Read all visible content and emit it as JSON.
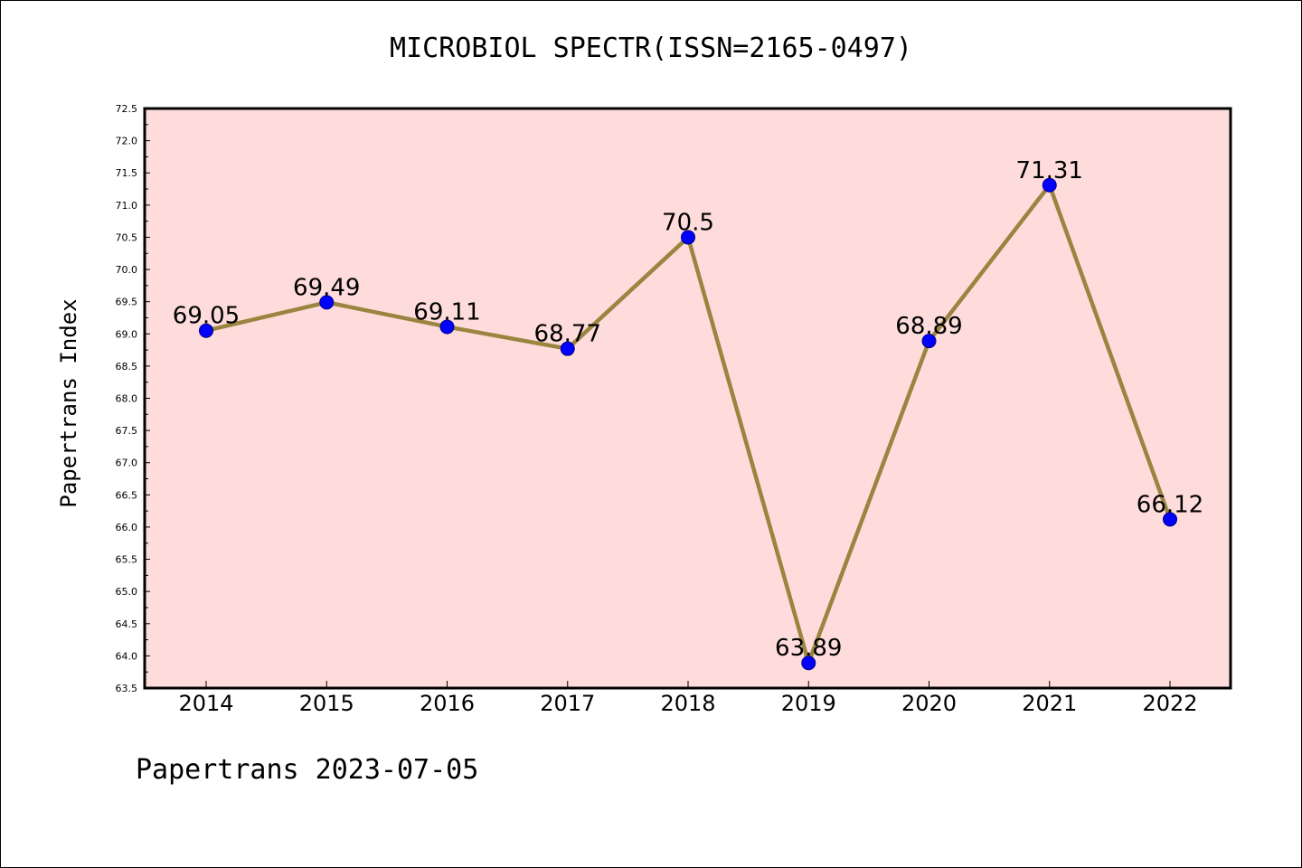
{
  "colors": {
    "plot_background": "#ffdcdc",
    "line": "#9a8540",
    "marker": "#0000ff",
    "axis": "#000000"
  },
  "chart_data": {
    "type": "line",
    "title": "MICROBIOL SPECTR(ISSN=2165-0497)",
    "ylabel": "Papertrans Index",
    "xlabel": "",
    "categories": [
      "2014",
      "2015",
      "2016",
      "2017",
      "2018",
      "2019",
      "2020",
      "2021",
      "2022"
    ],
    "series": [
      {
        "values": [
          69.05,
          69.49,
          69.11,
          68.77,
          70.5,
          63.89,
          68.89,
          71.31,
          66.12
        ],
        "labels": [
          "69.05",
          "69.49",
          "69.11",
          "68.77",
          "70.5",
          "63.89",
          "68.89",
          "71.31",
          "66.12"
        ]
      }
    ],
    "ylim": [
      63.5,
      72.5
    ],
    "yticks": [
      "63.5",
      "64.0",
      "64.5",
      "65.0",
      "65.5",
      "66.0",
      "66.5",
      "67.0",
      "67.5",
      "68.0",
      "68.5",
      "69.0",
      "69.5",
      "70.0",
      "70.5",
      "71.0",
      "71.5",
      "72.0",
      "72.5"
    ],
    "grid": false,
    "legend": "none"
  },
  "footer": "Papertrans 2023-07-05"
}
